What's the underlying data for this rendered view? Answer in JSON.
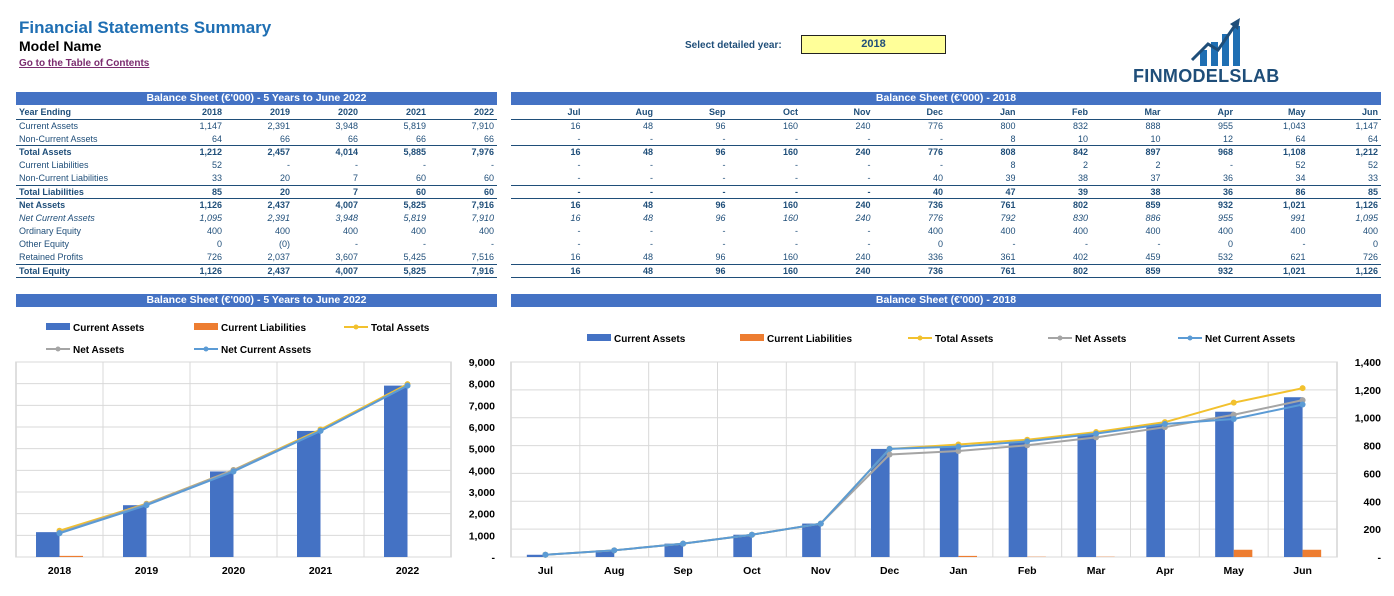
{
  "header": {
    "title": "Financial Statements Summary",
    "model_name": "Model Name",
    "toc_link": "Go to the Table of Contents",
    "select_label": "Select detailed year:",
    "selected_year": "2018",
    "logo_text": "FINMODELSLAB"
  },
  "left_table": {
    "banner": "Balance Sheet (€'000) - 5 Years to June 2022",
    "header_label": "Year Ending",
    "columns": [
      "2018",
      "2019",
      "2020",
      "2021",
      "2022"
    ],
    "rows": [
      {
        "label": "Current Assets",
        "style": "",
        "values": [
          "1,147",
          "2,391",
          "3,948",
          "5,819",
          "7,910"
        ]
      },
      {
        "label": "Non-Current Assets",
        "style": "",
        "values": [
          "64",
          "66",
          "66",
          "66",
          "66"
        ]
      },
      {
        "label": "Total Assets",
        "style": "bold bt",
        "values": [
          "1,212",
          "2,457",
          "4,014",
          "5,885",
          "7,976"
        ]
      },
      {
        "label": "Current Liabilities",
        "style": "",
        "values": [
          "52",
          "-",
          "-",
          "-",
          "-"
        ]
      },
      {
        "label": "Non-Current Liabilities",
        "style": "",
        "values": [
          "33",
          "20",
          "7",
          "60",
          "60"
        ]
      },
      {
        "label": "Total Liabilities",
        "style": "bold bt",
        "values": [
          "85",
          "20",
          "7",
          "60",
          "60"
        ]
      },
      {
        "label": "Net Assets",
        "style": "bold bt",
        "values": [
          "1,126",
          "2,437",
          "4,007",
          "5,825",
          "7,916"
        ]
      },
      {
        "label": "Net Current Assets",
        "style": "ital",
        "values": [
          "1,095",
          "2,391",
          "3,948",
          "5,819",
          "7,910"
        ]
      },
      {
        "label": "Ordinary Equity",
        "style": "",
        "values": [
          "400",
          "400",
          "400",
          "400",
          "400"
        ]
      },
      {
        "label": "Other Equity",
        "style": "",
        "values": [
          "0",
          "(0)",
          "-",
          "-",
          "-"
        ]
      },
      {
        "label": "Retained Profits",
        "style": "",
        "values": [
          "726",
          "2,037",
          "3,607",
          "5,425",
          "7,516"
        ]
      },
      {
        "label": "Total Equity",
        "style": "bold bt last",
        "values": [
          "1,126",
          "2,437",
          "4,007",
          "5,825",
          "7,916"
        ]
      }
    ]
  },
  "right_table": {
    "banner": "Balance Sheet (€'000) - 2018",
    "columns": [
      "Jul",
      "Aug",
      "Sep",
      "Oct",
      "Nov",
      "Dec",
      "Jan",
      "Feb",
      "Mar",
      "Apr",
      "May",
      "Jun"
    ],
    "rows": [
      {
        "style": "",
        "values": [
          "16",
          "48",
          "96",
          "160",
          "240",
          "776",
          "800",
          "832",
          "888",
          "955",
          "1,043",
          "1,147"
        ]
      },
      {
        "style": "",
        "values": [
          "-",
          "-",
          "-",
          "-",
          "-",
          "-",
          "8",
          "10",
          "10",
          "12",
          "64",
          "64"
        ]
      },
      {
        "style": "bold bt",
        "values": [
          "16",
          "48",
          "96",
          "160",
          "240",
          "776",
          "808",
          "842",
          "897",
          "968",
          "1,108",
          "1,212"
        ]
      },
      {
        "style": "",
        "values": [
          "-",
          "-",
          "-",
          "-",
          "-",
          "-",
          "8",
          "2",
          "2",
          "-",
          "52",
          "52"
        ]
      },
      {
        "style": "",
        "values": [
          "-",
          "-",
          "-",
          "-",
          "-",
          "40",
          "39",
          "38",
          "37",
          "36",
          "34",
          "33"
        ]
      },
      {
        "style": "bold bt",
        "values": [
          "-",
          "-",
          "-",
          "-",
          "-",
          "40",
          "47",
          "39",
          "38",
          "36",
          "86",
          "85"
        ]
      },
      {
        "style": "bold bt",
        "values": [
          "16",
          "48",
          "96",
          "160",
          "240",
          "736",
          "761",
          "802",
          "859",
          "932",
          "1,021",
          "1,126"
        ]
      },
      {
        "style": "ital",
        "values": [
          "16",
          "48",
          "96",
          "160",
          "240",
          "776",
          "792",
          "830",
          "886",
          "955",
          "991",
          "1,095"
        ]
      },
      {
        "style": "",
        "values": [
          "-",
          "-",
          "-",
          "-",
          "-",
          "400",
          "400",
          "400",
          "400",
          "400",
          "400",
          "400"
        ]
      },
      {
        "style": "",
        "values": [
          "-",
          "-",
          "-",
          "-",
          "-",
          "0",
          "-",
          "-",
          "-",
          "0",
          "-",
          "0"
        ]
      },
      {
        "style": "",
        "values": [
          "16",
          "48",
          "96",
          "160",
          "240",
          "336",
          "361",
          "402",
          "459",
          "532",
          "621",
          "726"
        ]
      },
      {
        "style": "bold bt last",
        "values": [
          "16",
          "48",
          "96",
          "160",
          "240",
          "736",
          "761",
          "802",
          "859",
          "932",
          "1,021",
          "1,126"
        ]
      }
    ]
  },
  "colors": {
    "banner": "#4472c4",
    "current_assets": "#4472c4",
    "current_liabilities": "#ed7d31",
    "total_assets": "#f2c12e",
    "net_assets": "#a5a5a5",
    "net_current_assets": "#5b9bd5"
  },
  "chart_data": [
    {
      "type": "bar",
      "title": "Balance Sheet (€'000) - 5 Years to June 2022",
      "categories": [
        "2018",
        "2019",
        "2020",
        "2021",
        "2022"
      ],
      "ylim": [
        0,
        9000
      ],
      "yticks": [
        0,
        1000,
        2000,
        3000,
        4000,
        5000,
        6000,
        7000,
        8000,
        9000
      ],
      "ytick_labels": [
        "-",
        "1,000",
        "2,000",
        "3,000",
        "4,000",
        "5,000",
        "6,000",
        "7,000",
        "8,000",
        "9,000"
      ],
      "y_axis_side": "right",
      "legend": "top",
      "grid": true,
      "series": [
        {
          "name": "Current Assets",
          "kind": "bar",
          "values": [
            1147,
            2391,
            3948,
            5819,
            7910
          ]
        },
        {
          "name": "Current Liabilities",
          "kind": "bar",
          "values": [
            52,
            0,
            0,
            0,
            0
          ]
        },
        {
          "name": "Total Assets",
          "kind": "line",
          "values": [
            1212,
            2457,
            4014,
            5885,
            7976
          ]
        },
        {
          "name": "Net Assets",
          "kind": "line",
          "values": [
            1126,
            2437,
            4007,
            5825,
            7916
          ]
        },
        {
          "name": "Net Current Assets",
          "kind": "line",
          "values": [
            1095,
            2391,
            3948,
            5819,
            7910
          ]
        }
      ]
    },
    {
      "type": "bar",
      "title": "Balance Sheet (€'000) - 2018",
      "categories": [
        "Jul",
        "Aug",
        "Sep",
        "Oct",
        "Nov",
        "Dec",
        "Jan",
        "Feb",
        "Mar",
        "Apr",
        "May",
        "Jun"
      ],
      "ylim": [
        0,
        1400
      ],
      "yticks": [
        0,
        200,
        400,
        600,
        800,
        1000,
        1200,
        1400
      ],
      "ytick_labels": [
        "-",
        "200",
        "400",
        "600",
        "800",
        "1,000",
        "1,200",
        "1,400"
      ],
      "y_axis_side": "right",
      "legend": "top",
      "grid": true,
      "series": [
        {
          "name": "Current Assets",
          "kind": "bar",
          "values": [
            16,
            48,
            96,
            160,
            240,
            776,
            800,
            832,
            888,
            955,
            1043,
            1147
          ]
        },
        {
          "name": "Current Liabilities",
          "kind": "bar",
          "values": [
            0,
            0,
            0,
            0,
            0,
            0,
            8,
            2,
            2,
            0,
            52,
            52
          ]
        },
        {
          "name": "Total Assets",
          "kind": "line",
          "values": [
            16,
            48,
            96,
            160,
            240,
            776,
            808,
            842,
            897,
            968,
            1108,
            1212
          ]
        },
        {
          "name": "Net Assets",
          "kind": "line",
          "values": [
            16,
            48,
            96,
            160,
            240,
            736,
            761,
            802,
            859,
            932,
            1021,
            1126
          ]
        },
        {
          "name": "Net Current Assets",
          "kind": "line",
          "values": [
            16,
            48,
            96,
            160,
            240,
            776,
            792,
            830,
            886,
            955,
            991,
            1095
          ]
        }
      ]
    }
  ]
}
